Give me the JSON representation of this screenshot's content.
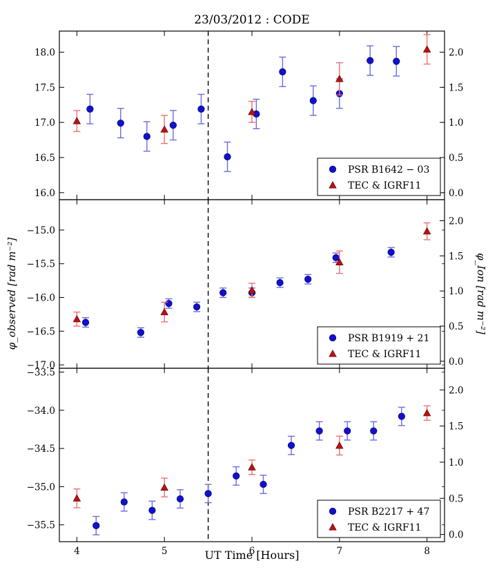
{
  "chart_data": {
    "type": "scatter",
    "title": "23/03/2012 : CODE",
    "xlabel": "UT Time [Hours]",
    "ylabel_left": "φ_observed [rad m⁻²]",
    "ylabel_right": "φ_Ion [rad m⁻²]",
    "xlim": [
      3.8,
      8.2
    ],
    "xticks": [
      4,
      5,
      6,
      7,
      8
    ],
    "vline_x": 5.5,
    "colors": {
      "pulsar": "#1010d0",
      "pulsar_err": "#6a6ae8",
      "model": "#c01010",
      "model_err": "#f07070"
    },
    "panels": [
      {
        "name": "b1642",
        "ylim": [
          15.9,
          18.3
        ],
        "yticks": [
          16.0,
          16.5,
          17.0,
          17.5,
          18.0
        ],
        "ytick_labels": [
          "16.0",
          "16.5",
          "17.0",
          "17.5",
          "18.0"
        ],
        "rlim": [
          -0.1,
          2.3
        ],
        "rticks": [
          0.0,
          0.5,
          1.0,
          1.5,
          2.0
        ],
        "rtick_labels": [
          "0.0",
          "0.5",
          "1.0",
          "1.5",
          "2.0"
        ],
        "legend": {
          "pulsar": "PSR B1642 − 03",
          "model": "TEC & IGRF11",
          "placement": "bottom-right"
        },
        "pulsar": [
          {
            "x": 4.15,
            "y": 17.19,
            "err": 0.21
          },
          {
            "x": 4.5,
            "y": 16.99,
            "err": 0.21
          },
          {
            "x": 4.8,
            "y": 16.8,
            "err": 0.21
          },
          {
            "x": 5.1,
            "y": 16.96,
            "err": 0.21
          },
          {
            "x": 5.42,
            "y": 17.19,
            "err": 0.21
          },
          {
            "x": 5.72,
            "y": 16.51,
            "err": 0.21
          },
          {
            "x": 6.05,
            "y": 17.12,
            "err": 0.21
          },
          {
            "x": 6.35,
            "y": 17.72,
            "err": 0.21
          },
          {
            "x": 6.7,
            "y": 17.31,
            "err": 0.21
          },
          {
            "x": 7.0,
            "y": 17.41,
            "err": 0.21
          },
          {
            "x": 7.35,
            "y": 17.88,
            "err": 0.21
          },
          {
            "x": 7.65,
            "y": 17.87,
            "err": 0.21
          }
        ],
        "model": [
          {
            "x": 4.0,
            "y": 1.02,
            "err": 0.15
          },
          {
            "x": 5.0,
            "y": 0.9,
            "err": 0.2
          },
          {
            "x": 6.0,
            "y": 1.15,
            "err": 0.15
          },
          {
            "x": 7.0,
            "y": 1.62,
            "err": 0.23
          },
          {
            "x": 8.0,
            "y": 2.04,
            "err": 0.21
          }
        ]
      },
      {
        "name": "b1919",
        "ylim": [
          -17.05,
          -14.55
        ],
        "yticks": [
          -17.0,
          -16.5,
          -16.0,
          -15.5,
          -15.0
        ],
        "ytick_labels": [
          "−17.0",
          "−16.5",
          "−16.0",
          "−15.5",
          "−15.0"
        ],
        "rlim": [
          -0.1,
          2.3
        ],
        "rticks": [
          0.0,
          0.5,
          1.0,
          1.5,
          2.0
        ],
        "rtick_labels": [
          "0.0",
          "0.5",
          "1.0",
          "1.5",
          "2.0"
        ],
        "legend": {
          "pulsar": "PSR B1919 + 21",
          "model": "TEC & IGRF11",
          "placement": "bottom-right"
        },
        "pulsar": [
          {
            "x": 4.1,
            "y": -16.37,
            "err": 0.07
          },
          {
            "x": 4.73,
            "y": -16.52,
            "err": 0.07
          },
          {
            "x": 5.05,
            "y": -16.09,
            "err": 0.07
          },
          {
            "x": 5.37,
            "y": -16.14,
            "err": 0.07
          },
          {
            "x": 5.67,
            "y": -15.93,
            "err": 0.07
          },
          {
            "x": 6.0,
            "y": -15.93,
            "err": 0.07
          },
          {
            "x": 6.32,
            "y": -15.78,
            "err": 0.07
          },
          {
            "x": 6.64,
            "y": -15.73,
            "err": 0.07
          },
          {
            "x": 6.96,
            "y": -15.41,
            "err": 0.07
          },
          {
            "x": 7.59,
            "y": -15.33,
            "err": 0.07
          }
        ],
        "model": [
          {
            "x": 4.0,
            "y": 0.6,
            "err": 0.1
          },
          {
            "x": 5.0,
            "y": 0.7,
            "err": 0.14
          },
          {
            "x": 6.0,
            "y": 1.01,
            "err": 0.1
          },
          {
            "x": 7.0,
            "y": 1.41,
            "err": 0.16
          },
          {
            "x": 8.0,
            "y": 1.85,
            "err": 0.12
          }
        ]
      },
      {
        "name": "b2217",
        "ylim": [
          -35.72,
          -33.45
        ],
        "yticks": [
          -35.5,
          -35.0,
          -34.5,
          -34.0,
          -33.5
        ],
        "ytick_labels": [
          "−35.5",
          "−35.0",
          "−34.5",
          "−34.0",
          "−33.5"
        ],
        "rlim": [
          -0.1,
          2.3
        ],
        "rticks": [
          0.0,
          0.5,
          1.0,
          1.5,
          2.0
        ],
        "rtick_labels": [
          "0.0",
          "0.5",
          "1.0",
          "1.5",
          "2.0"
        ],
        "legend": {
          "pulsar": "PSR B2217 + 47",
          "model": "TEC & IGRF11",
          "placement": "bottom-right"
        },
        "pulsar": [
          {
            "x": 4.22,
            "y": -35.51,
            "err": 0.12
          },
          {
            "x": 4.54,
            "y": -35.2,
            "err": 0.12
          },
          {
            "x": 4.86,
            "y": -35.31,
            "err": 0.12
          },
          {
            "x": 5.18,
            "y": -35.16,
            "err": 0.12
          },
          {
            "x": 5.5,
            "y": -35.09,
            "err": 0.12
          },
          {
            "x": 5.82,
            "y": -34.86,
            "err": 0.12
          },
          {
            "x": 6.13,
            "y": -34.97,
            "err": 0.12
          },
          {
            "x": 6.45,
            "y": -34.46,
            "err": 0.12
          },
          {
            "x": 6.77,
            "y": -34.27,
            "err": 0.12
          },
          {
            "x": 7.09,
            "y": -34.27,
            "err": 0.12
          },
          {
            "x": 7.39,
            "y": -34.27,
            "err": 0.12
          },
          {
            "x": 7.71,
            "y": -34.08,
            "err": 0.12
          }
        ],
        "model": [
          {
            "x": 4.0,
            "y": 0.5,
            "err": 0.13
          },
          {
            "x": 5.0,
            "y": 0.65,
            "err": 0.13
          },
          {
            "x": 6.0,
            "y": 0.93,
            "err": 0.1
          },
          {
            "x": 7.0,
            "y": 1.23,
            "err": 0.13
          },
          {
            "x": 8.0,
            "y": 1.68,
            "err": 0.1
          }
        ]
      }
    ]
  }
}
